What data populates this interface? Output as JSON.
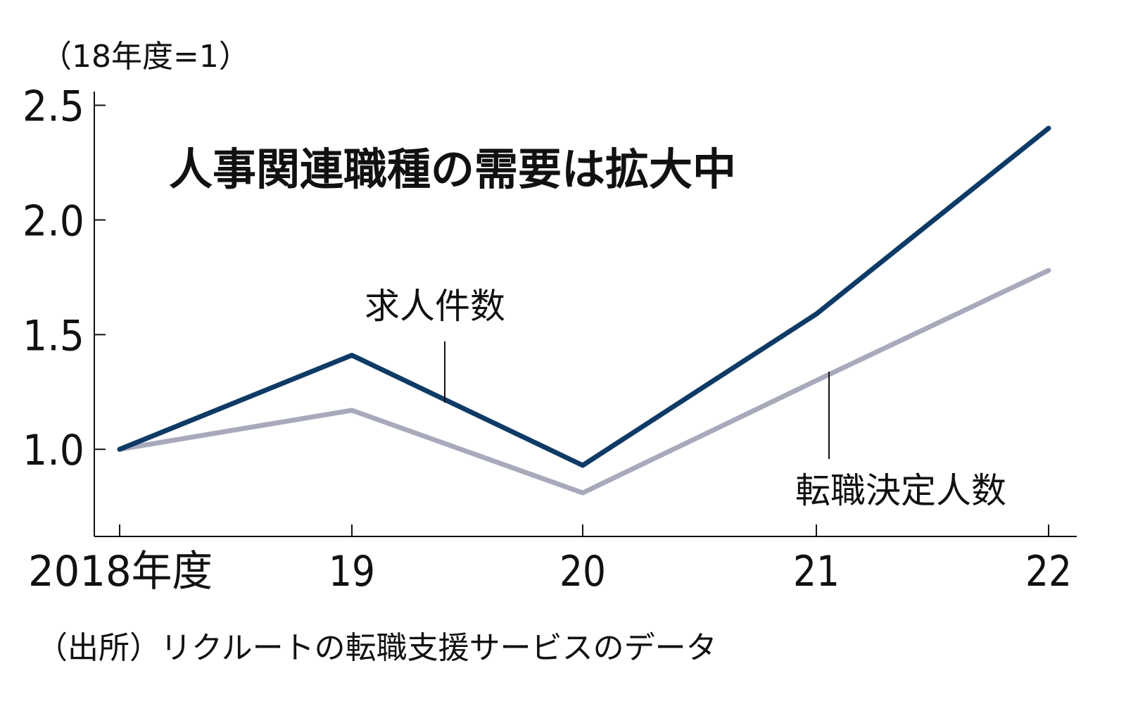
{
  "chart_data": {
    "type": "line",
    "title": "人事関連職種の需要は拡大中",
    "unit_label": "（18年度=1）",
    "source": "（出所）リクルートの転職支援サービスのデータ",
    "categories": [
      "2018年度",
      "19",
      "20",
      "21",
      "22"
    ],
    "ylim": [
      0.62,
      2.56
    ],
    "yticks": [
      "1.0",
      "1.5",
      "2.0",
      "2.5"
    ],
    "ytick_values": [
      1.0,
      1.5,
      2.0,
      2.5
    ],
    "grid": false,
    "series": [
      {
        "name": "求人件数",
        "color": "#0e3a66",
        "values": [
          1.0,
          1.41,
          0.93,
          1.59,
          2.4
        ]
      },
      {
        "name": "転職決定人数",
        "color": "#a8aabb",
        "values": [
          1.0,
          1.17,
          0.81,
          1.3,
          1.78
        ]
      }
    ]
  }
}
